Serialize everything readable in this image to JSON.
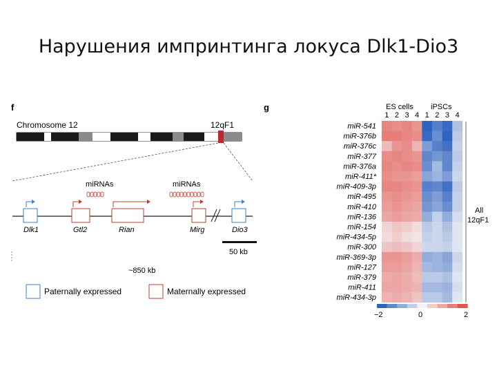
{
  "slide_title": "Нарушения импринтинга локуса Dlk1-Dio3",
  "panel_f": {
    "label": "f",
    "chromosome_label": "Chromosome 12",
    "band_label": "12qF1",
    "mirna_labels": [
      "miRNAs",
      "miRNAs"
    ],
    "genes": [
      {
        "name": "Dlk1",
        "expression": "paternal"
      },
      {
        "name": "Gtl2",
        "expression": "maternal"
      },
      {
        "name": "Rian",
        "expression": "maternal"
      },
      {
        "name": "Mirg",
        "expression": "maternal"
      },
      {
        "name": "Dio3",
        "expression": "paternal"
      }
    ],
    "scale_bar": "50 kb",
    "distance": "~850 kb",
    "legend": {
      "paternal": "Paternally expressed",
      "maternal": "Maternally expressed"
    },
    "colors": {
      "paternal": "#3a7fd6",
      "maternal": "#c0392b",
      "band": "#c0272d"
    }
  },
  "panel_g": {
    "label": "g",
    "group_labels": [
      "ES cells",
      "iPSCs"
    ],
    "columns": [
      "1",
      "2",
      "3",
      "4",
      "1",
      "2",
      "3",
      "4"
    ],
    "rows": [
      "miR-541",
      "miR-376b",
      "miR-376c",
      "miR-377",
      "miR-376a",
      "miR-411*",
      "miR-409-3p",
      "miR-495",
      "miR-410",
      "miR-136",
      "miR-154",
      "miR-434-5p",
      "miR-300",
      "miR-369-3p",
      "miR-127",
      "miR-379",
      "miR-411",
      "miR-434-3p"
    ],
    "side_label_1": "All",
    "side_label_2": "12qF1",
    "scale_min": "−2",
    "scale_mid": "0",
    "scale_max": "2",
    "values": [
      [
        1.4,
        1.3,
        1.4,
        1.2,
        -2.0,
        -1.6,
        -1.9,
        -0.7
      ],
      [
        1.5,
        1.5,
        1.4,
        1.3,
        -1.9,
        -1.4,
        -2.0,
        -0.6
      ],
      [
        0.7,
        1.2,
        1.3,
        0.8,
        -1.2,
        -1.6,
        -1.8,
        -0.5
      ],
      [
        1.3,
        1.4,
        1.3,
        1.2,
        -1.5,
        -1.3,
        -1.5,
        -0.6
      ],
      [
        1.4,
        1.3,
        1.4,
        1.3,
        -1.4,
        -0.8,
        -1.5,
        -0.5
      ],
      [
        1.3,
        1.2,
        1.2,
        1.1,
        -1.1,
        -0.9,
        -1.2,
        -0.4
      ],
      [
        1.4,
        1.4,
        1.3,
        1.2,
        -1.6,
        -1.5,
        -1.8,
        -0.6
      ],
      [
        1.2,
        1.3,
        1.2,
        1.1,
        -1.4,
        -1.2,
        -1.6,
        -0.5
      ],
      [
        1.1,
        1.2,
        1.1,
        1.0,
        -1.3,
        -1.1,
        -1.4,
        -0.5
      ],
      [
        1.0,
        1.1,
        1.0,
        0.9,
        -1.0,
        -0.5,
        -1.0,
        -0.3
      ],
      [
        0.4,
        0.6,
        0.5,
        0.3,
        -0.6,
        -0.4,
        -0.7,
        -0.2
      ],
      [
        0.3,
        0.5,
        0.3,
        0.2,
        -0.5,
        -0.4,
        -0.6,
        -0.2
      ],
      [
        0.6,
        0.7,
        0.6,
        0.4,
        -0.4,
        -0.4,
        -0.5,
        -0.2
      ],
      [
        1.2,
        1.2,
        1.1,
        0.9,
        -1.0,
        -0.9,
        -1.1,
        -0.4
      ],
      [
        1.1,
        1.1,
        1.0,
        0.8,
        -0.8,
        -0.9,
        -1.0,
        -0.3
      ],
      [
        0.9,
        1.0,
        0.9,
        0.7,
        -0.6,
        -0.6,
        -0.7,
        -0.2
      ],
      [
        1.0,
        1.0,
        0.9,
        0.8,
        -0.8,
        -0.8,
        -0.9,
        -0.3
      ],
      [
        0.8,
        0.9,
        0.8,
        0.6,
        -0.6,
        -0.6,
        -0.8,
        -0.2
      ]
    ],
    "colors": {
      "low": "#2f63c0",
      "mid": "#f4f4f6",
      "high": "#e2554f"
    }
  }
}
